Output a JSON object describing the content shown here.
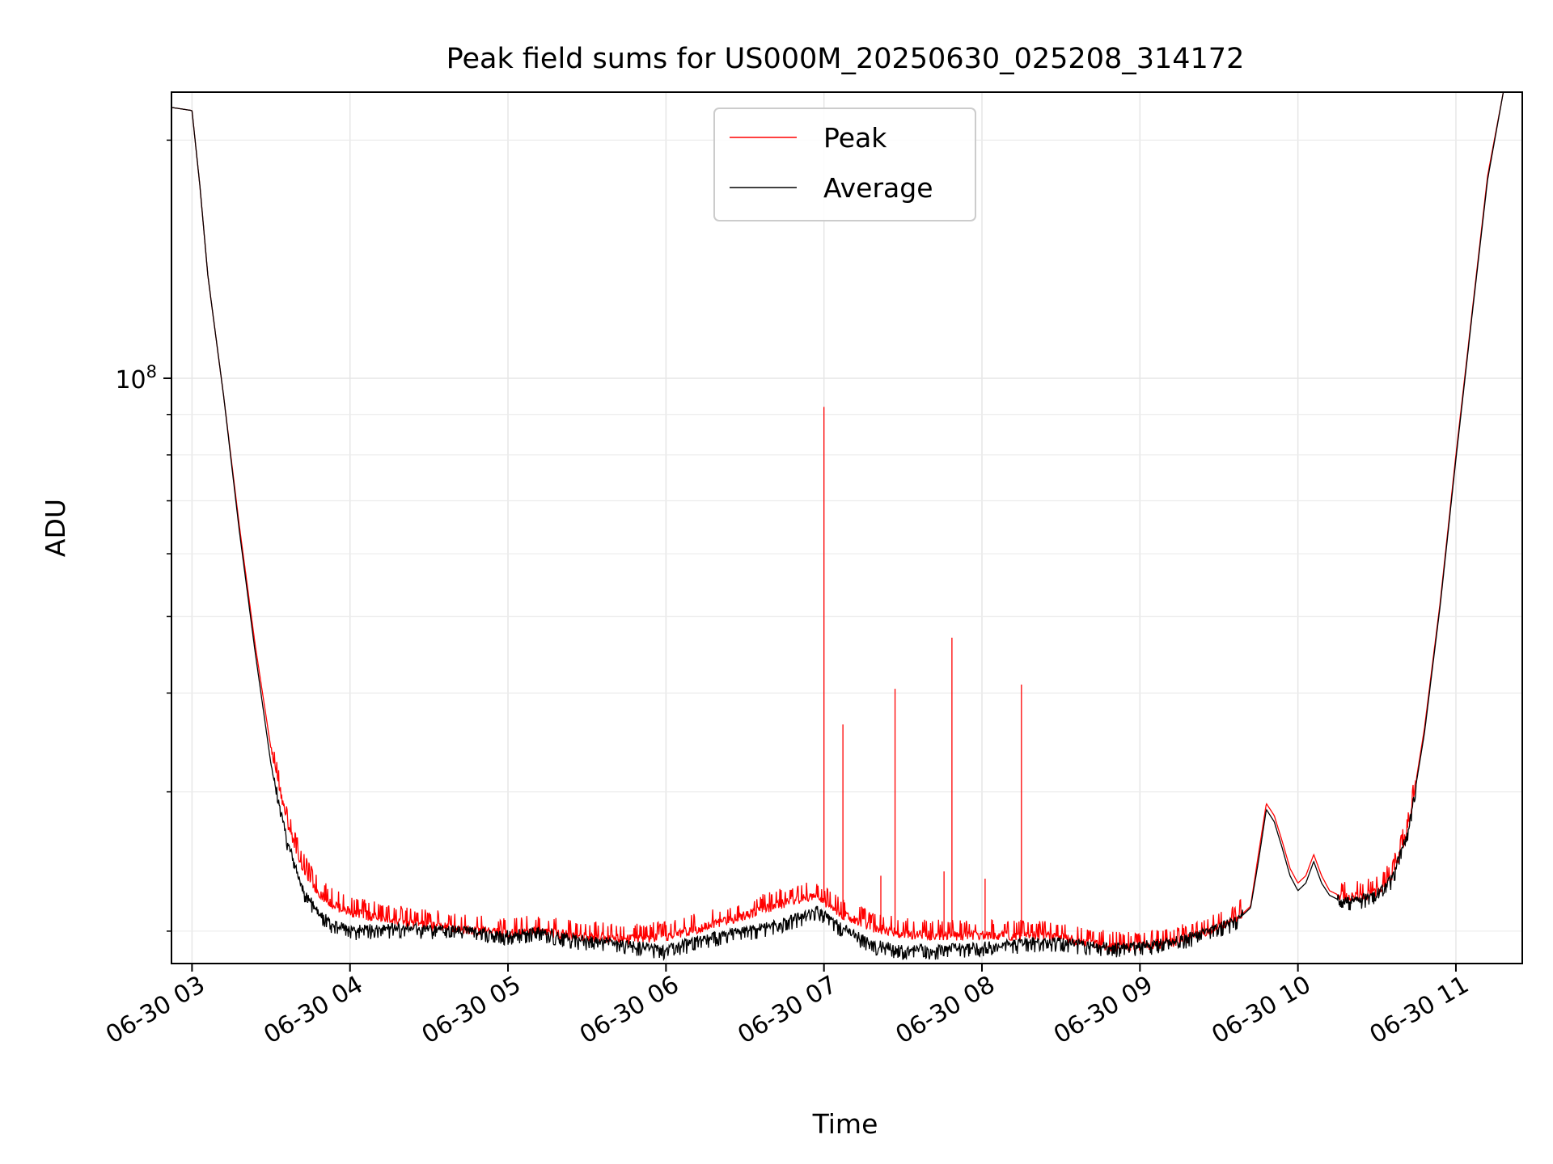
{
  "chart_data": {
    "type": "line",
    "title": "Peak field sums for US000M_20250630_025208_314172",
    "xlabel": "Time",
    "ylabel": "ADU",
    "y_scale": "log",
    "grid": true,
    "legend_position": "upper center",
    "x_tick_labels": [
      "06-30 03",
      "06-30 04",
      "06-30 05",
      "06-30 06",
      "06-30 07",
      "06-30 08",
      "06-30 09",
      "06-30 10",
      "06-30 11"
    ],
    "x_tick_hours": [
      3,
      4,
      5,
      6,
      7,
      8,
      9,
      10,
      11
    ],
    "y_major_tick_label": {
      "base": "10",
      "exponent": "8",
      "value": 100000000
    },
    "y_minor_ticks": [
      20000000,
      30000000,
      40000000,
      50000000,
      60000000,
      70000000,
      80000000,
      90000000,
      200000000
    ],
    "xlim_hours": [
      2.87,
      11.42
    ],
    "ylim": [
      18200000,
      230000000
    ],
    "series": [
      {
        "name": "Peak",
        "color": "#ff0000",
        "points": [
          [
            2.87,
            220000000
          ],
          [
            3.0,
            218000000
          ],
          [
            3.05,
            175000000
          ],
          [
            3.1,
            135000000
          ],
          [
            3.2,
            95000000
          ],
          [
            3.3,
            65000000
          ],
          [
            3.4,
            46000000
          ],
          [
            3.5,
            34000000
          ],
          [
            3.6,
            27500000
          ],
          [
            3.7,
            24000000
          ],
          [
            3.8,
            22300000
          ],
          [
            3.9,
            21500000
          ],
          [
            4.0,
            21100000
          ],
          [
            4.2,
            20700000
          ],
          [
            4.4,
            20400000
          ],
          [
            4.6,
            20200000
          ],
          [
            4.8,
            20000000
          ],
          [
            5.0,
            19800000
          ],
          [
            5.2,
            20000000
          ],
          [
            5.4,
            19700000
          ],
          [
            5.6,
            19600000
          ],
          [
            5.8,
            19500000
          ],
          [
            6.0,
            19600000
          ],
          [
            6.2,
            20100000
          ],
          [
            6.4,
            20600000
          ],
          [
            6.6,
            21200000
          ],
          [
            6.8,
            21800000
          ],
          [
            6.95,
            22100000
          ],
          [
            7.1,
            21000000
          ],
          [
            7.3,
            20200000
          ],
          [
            7.5,
            19800000
          ],
          [
            7.7,
            19700000
          ],
          [
            7.9,
            19700000
          ],
          [
            8.1,
            19700000
          ],
          [
            8.3,
            19700000
          ],
          [
            8.5,
            19600000
          ],
          [
            8.7,
            19200000
          ],
          [
            8.9,
            19000000
          ],
          [
            9.0,
            19100000
          ],
          [
            9.2,
            19300000
          ],
          [
            9.4,
            19800000
          ],
          [
            9.6,
            20600000
          ],
          [
            9.7,
            21500000
          ],
          [
            9.75,
            25000000
          ],
          [
            9.8,
            29000000
          ],
          [
            9.85,
            28000000
          ],
          [
            9.9,
            26000000
          ],
          [
            9.95,
            24000000
          ],
          [
            10.0,
            23000000
          ],
          [
            10.05,
            23500000
          ],
          [
            10.1,
            25000000
          ],
          [
            10.15,
            23500000
          ],
          [
            10.2,
            22500000
          ],
          [
            10.3,
            22000000
          ],
          [
            10.4,
            22100000
          ],
          [
            10.5,
            22400000
          ],
          [
            10.6,
            23500000
          ],
          [
            10.7,
            27000000
          ],
          [
            10.8,
            36000000
          ],
          [
            10.9,
            52000000
          ],
          [
            11.0,
            80000000
          ],
          [
            11.1,
            120000000
          ],
          [
            11.2,
            180000000
          ],
          [
            11.3,
            230000000
          ]
        ],
        "spikes": [
          [
            7.0,
            92000000
          ],
          [
            7.12,
            36500000
          ],
          [
            7.36,
            23500000
          ],
          [
            7.45,
            40500000
          ],
          [
            7.76,
            23800000
          ],
          [
            7.81,
            47000000
          ],
          [
            8.02,
            23300000
          ],
          [
            8.25,
            41000000
          ]
        ]
      },
      {
        "name": "Average",
        "color": "#000000",
        "points": [
          [
            2.87,
            220000000
          ],
          [
            3.0,
            218000000
          ],
          [
            3.05,
            175000000
          ],
          [
            3.1,
            135000000
          ],
          [
            3.2,
            95000000
          ],
          [
            3.3,
            64000000
          ],
          [
            3.4,
            45000000
          ],
          [
            3.5,
            32500000
          ],
          [
            3.6,
            26000000
          ],
          [
            3.7,
            22500000
          ],
          [
            3.8,
            21000000
          ],
          [
            3.9,
            20300000
          ],
          [
            4.0,
            20000000
          ],
          [
            4.2,
            20100000
          ],
          [
            4.4,
            20100000
          ],
          [
            4.6,
            20000000
          ],
          [
            4.8,
            19900000
          ],
          [
            5.0,
            19700000
          ],
          [
            5.2,
            19900000
          ],
          [
            5.4,
            19500000
          ],
          [
            5.6,
            19300000
          ],
          [
            5.8,
            19100000
          ],
          [
            6.0,
            18900000
          ],
          [
            6.2,
            19400000
          ],
          [
            6.4,
            19800000
          ],
          [
            6.6,
            20100000
          ],
          [
            6.8,
            20600000
          ],
          [
            6.95,
            21200000
          ],
          [
            7.1,
            20200000
          ],
          [
            7.3,
            19200000
          ],
          [
            7.5,
            18900000
          ],
          [
            7.7,
            18900000
          ],
          [
            7.9,
            19000000
          ],
          [
            8.1,
            19100000
          ],
          [
            8.3,
            19300000
          ],
          [
            8.5,
            19300000
          ],
          [
            8.7,
            19100000
          ],
          [
            8.9,
            19000000
          ],
          [
            9.0,
            19100000
          ],
          [
            9.2,
            19300000
          ],
          [
            9.4,
            19800000
          ],
          [
            9.6,
            20500000
          ],
          [
            9.7,
            21400000
          ],
          [
            9.75,
            24500000
          ],
          [
            9.8,
            28500000
          ],
          [
            9.85,
            27500000
          ],
          [
            9.9,
            25500000
          ],
          [
            9.95,
            23500000
          ],
          [
            10.0,
            22500000
          ],
          [
            10.05,
            23000000
          ],
          [
            10.1,
            24500000
          ],
          [
            10.15,
            23000000
          ],
          [
            10.2,
            22200000
          ],
          [
            10.3,
            21700000
          ],
          [
            10.4,
            21900000
          ],
          [
            10.5,
            22200000
          ],
          [
            10.6,
            23300000
          ],
          [
            10.7,
            26800000
          ],
          [
            10.8,
            35500000
          ],
          [
            10.9,
            51500000
          ],
          [
            11.0,
            79000000
          ],
          [
            11.1,
            119000000
          ],
          [
            11.2,
            178000000
          ],
          [
            11.3,
            230000000
          ]
        ]
      }
    ]
  }
}
